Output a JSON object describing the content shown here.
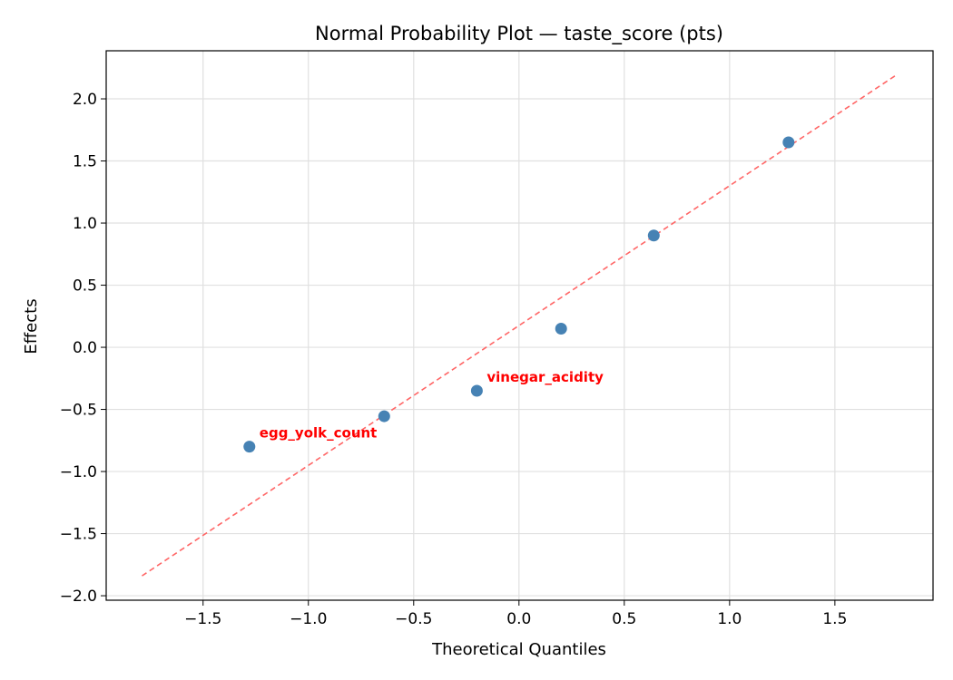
{
  "chart_data": {
    "type": "scatter",
    "title": "Normal Probability Plot — taste_score (pts)",
    "xlabel": "Theoretical Quantiles",
    "ylabel": "Effects",
    "xlim": [
      -1.96,
      1.966
    ],
    "ylim": [
      -2.036,
      2.387
    ],
    "xticks": [
      -1.5,
      -1.0,
      -0.5,
      0.0,
      0.5,
      1.0,
      1.5
    ],
    "xtick_labels": [
      "−1.5",
      "−1.0",
      "−0.5",
      "0.0",
      "0.5",
      "1.0",
      "1.5"
    ],
    "yticks": [
      -2.0,
      -1.5,
      -1.0,
      -0.5,
      0.0,
      0.5,
      1.0,
      1.5,
      2.0
    ],
    "ytick_labels": [
      "−2.0",
      "−1.5",
      "−1.0",
      "−0.5",
      "0.0",
      "0.5",
      "1.0",
      "1.5",
      "2.0"
    ],
    "grid": true,
    "points": [
      {
        "x": -1.28,
        "y": -0.8,
        "label": "egg_yolk_count"
      },
      {
        "x": -0.64,
        "y": -0.555,
        "label": ""
      },
      {
        "x": -0.2,
        "y": -0.35,
        "label": "vinegar_acidity"
      },
      {
        "x": 0.2,
        "y": 0.15,
        "label": ""
      },
      {
        "x": 0.64,
        "y": 0.9,
        "label": ""
      },
      {
        "x": 1.28,
        "y": 1.65,
        "label": ""
      }
    ],
    "reference_line": {
      "x": [
        -1.79,
        1.79
      ],
      "y": [
        -1.84,
        2.19
      ],
      "style": "dashed"
    },
    "colors": {
      "points": "#4682b4",
      "line": "#ff6666",
      "labels": "#ff0000",
      "grid": "#e0e0e0"
    }
  }
}
